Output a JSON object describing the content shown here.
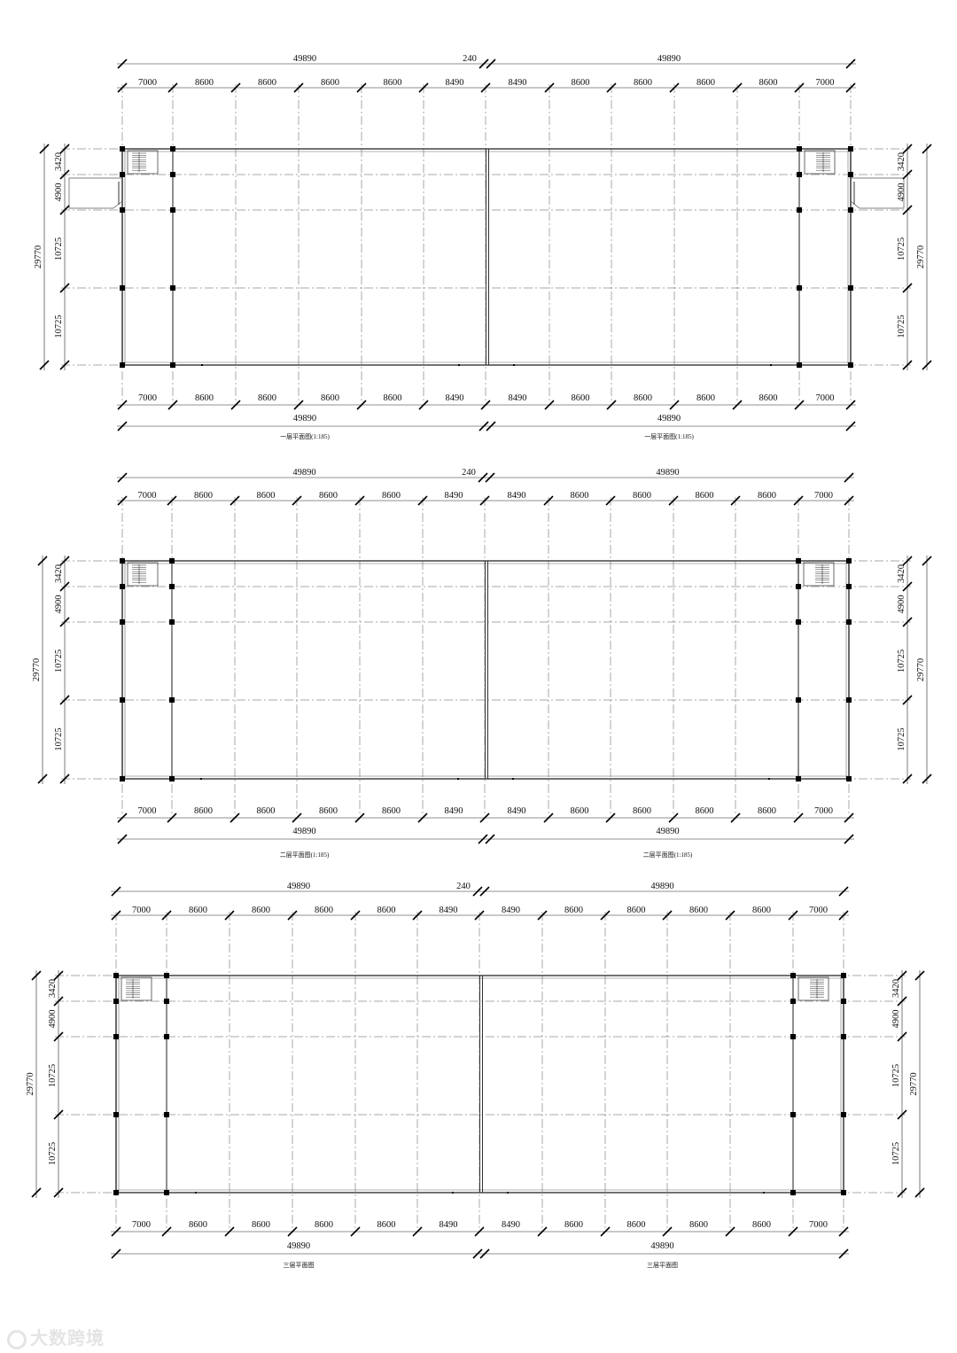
{
  "drawing": {
    "plans": [
      {
        "caption_left": "一层平面图(1:185)",
        "caption_right": "一层平面图(1:185)",
        "overall_left": "49890",
        "overall_right": "49890",
        "joint": "240",
        "bays_left": [
          "7000",
          "8600",
          "8600",
          "8600",
          "8600",
          "8490"
        ],
        "bays_right": [
          "8490",
          "8600",
          "8600",
          "8600",
          "8600",
          "7000"
        ],
        "depth_total": "29770",
        "depths": [
          "3420",
          "4900",
          "10725",
          "10725"
        ],
        "entrance": true
      },
      {
        "caption_left": "二层平面图(1:185)",
        "caption_right": "二层平面图(1:185)",
        "overall_left": "49890",
        "overall_right": "49890",
        "joint": "240",
        "bays_left": [
          "7000",
          "8600",
          "8600",
          "8600",
          "8600",
          "8490"
        ],
        "bays_right": [
          "8490",
          "8600",
          "8600",
          "8600",
          "8600",
          "7000"
        ],
        "depth_total": "29770",
        "depths": [
          "3420",
          "4900",
          "10725",
          "10725"
        ],
        "entrance": false
      },
      {
        "caption_left": "三层平面图",
        "caption_right": "三层平面图",
        "overall_left": "49890",
        "overall_right": "49890",
        "joint": "240",
        "bays_left": [
          "7000",
          "8600",
          "8600",
          "8600",
          "8600",
          "8490"
        ],
        "bays_right": [
          "8490",
          "8600",
          "8600",
          "8600",
          "8600",
          "7000"
        ],
        "depth_total": "29770",
        "depths": [
          "3420",
          "4900",
          "10725",
          "10725"
        ],
        "entrance": false
      }
    ]
  },
  "watermark": {
    "text": "大数跨境",
    "icon": "brand-logo-icon"
  }
}
